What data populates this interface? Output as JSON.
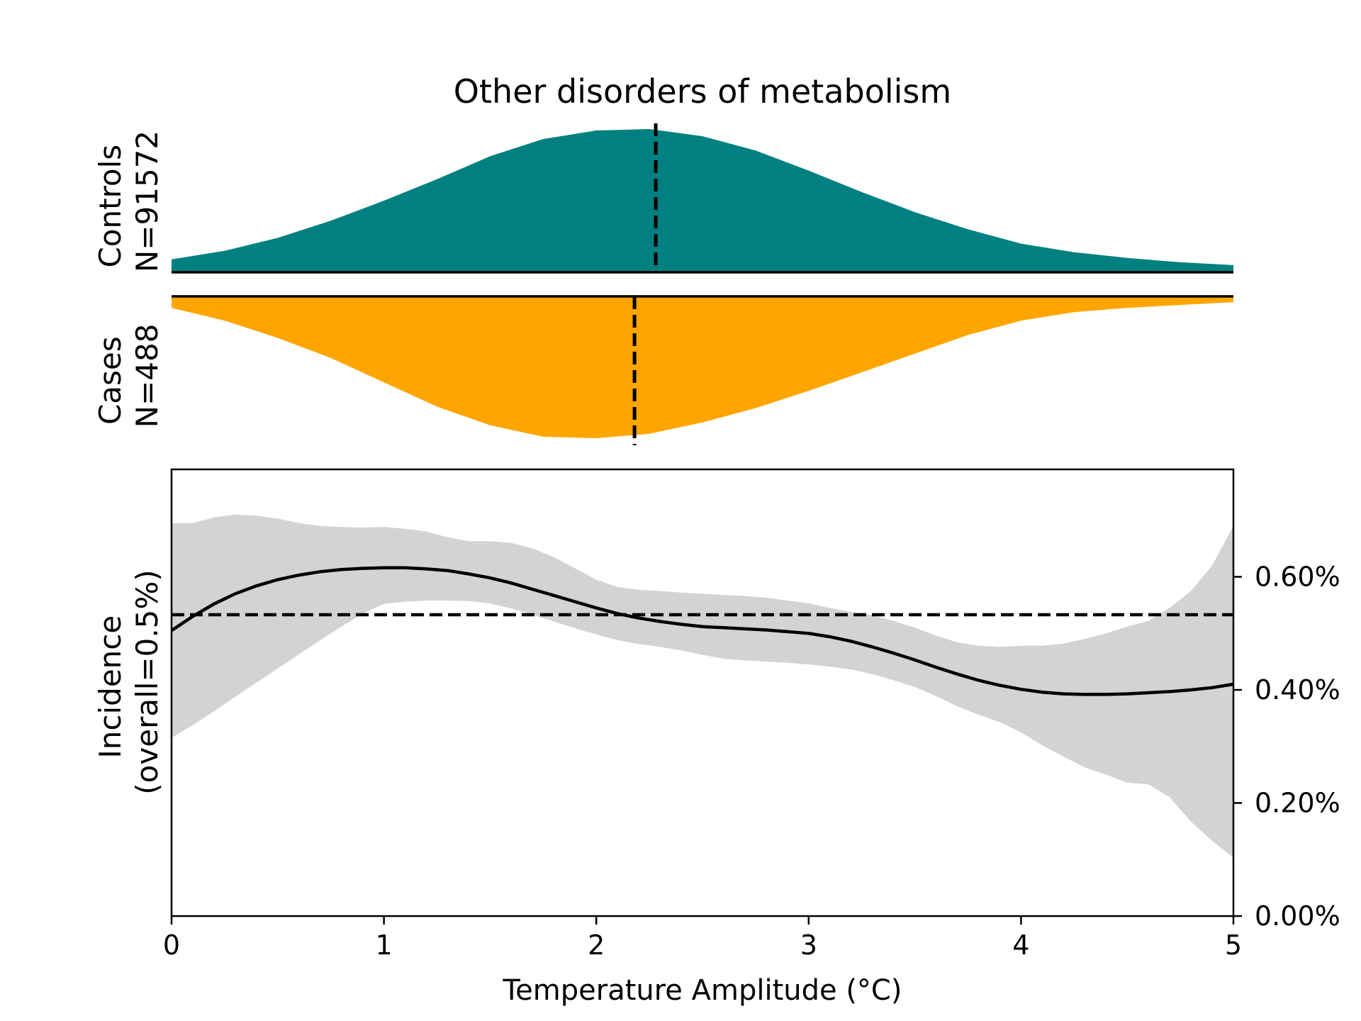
{
  "chart_data": [
    {
      "type": "area",
      "panel": "controls-density",
      "title": "Other disorders of metabolism",
      "ylabel": [
        "Controls",
        "N=91572"
      ],
      "fill": "#008080",
      "median": 2.28,
      "x": [
        0,
        0.25,
        0.5,
        0.75,
        1.0,
        1.25,
        1.5,
        1.75,
        2.0,
        2.25,
        2.5,
        2.75,
        3.0,
        3.25,
        3.5,
        3.75,
        4.0,
        4.25,
        4.5,
        4.75,
        5.0
      ],
      "values": [
        0.09,
        0.15,
        0.24,
        0.36,
        0.5,
        0.65,
        0.81,
        0.93,
        0.99,
        1.0,
        0.95,
        0.85,
        0.71,
        0.56,
        0.42,
        0.3,
        0.2,
        0.14,
        0.1,
        0.07,
        0.05
      ]
    },
    {
      "type": "area",
      "panel": "cases-density",
      "ylabel": [
        "Cases",
        "N=488"
      ],
      "fill": "#ffa500",
      "median": 2.18,
      "x": [
        0,
        0.25,
        0.5,
        0.75,
        1.0,
        1.25,
        1.5,
        1.75,
        2.0,
        2.25,
        2.5,
        2.75,
        3.0,
        3.25,
        3.5,
        3.75,
        4.0,
        4.25,
        4.5,
        4.75,
        5.0
      ],
      "values": [
        0.08,
        0.17,
        0.29,
        0.43,
        0.6,
        0.77,
        0.9,
        0.98,
        0.99,
        0.96,
        0.88,
        0.78,
        0.66,
        0.53,
        0.4,
        0.27,
        0.17,
        0.11,
        0.08,
        0.06,
        0.04
      ]
    },
    {
      "type": "line",
      "panel": "incidence",
      "xlabel": "Temperature Amplitude (°C)",
      "ylabel": [
        "Incidence",
        "(overall=0.5%)"
      ],
      "xlim": [
        0,
        5
      ],
      "ylim": [
        0,
        0.0079
      ],
      "xticks": [
        0,
        1,
        2,
        3,
        4,
        5
      ],
      "xtick_labels": [
        "0",
        "1",
        "2",
        "3",
        "4",
        "5"
      ],
      "yticks": [
        0,
        0.002,
        0.004,
        0.006
      ],
      "ytick_labels": [
        "0.00%",
        "0.20%",
        "0.40%",
        "0.60%"
      ],
      "overall": 0.00533,
      "band_color": "#d3d3d3",
      "x": [
        0,
        0.1,
        0.2,
        0.3,
        0.4,
        0.5,
        0.6,
        0.7,
        0.8,
        0.9,
        1.0,
        1.1,
        1.2,
        1.3,
        1.4,
        1.5,
        1.6,
        1.7,
        1.8,
        1.9,
        2.0,
        2.1,
        2.2,
        2.3,
        2.4,
        2.5,
        2.6,
        2.7,
        2.8,
        2.9,
        3.0,
        3.1,
        3.2,
        3.3,
        3.4,
        3.5,
        3.6,
        3.7,
        3.8,
        3.9,
        4.0,
        4.1,
        4.2,
        4.3,
        4.4,
        4.5,
        4.6,
        4.7,
        4.8,
        4.9,
        5.0
      ],
      "y": [
        0.00505,
        0.0053,
        0.00552,
        0.0057,
        0.00584,
        0.00595,
        0.00603,
        0.00609,
        0.00613,
        0.00615,
        0.00616,
        0.00616,
        0.00614,
        0.00611,
        0.00605,
        0.00598,
        0.00589,
        0.00578,
        0.00567,
        0.00556,
        0.00545,
        0.00535,
        0.00527,
        0.00521,
        0.00516,
        0.00512,
        0.0051,
        0.00508,
        0.00506,
        0.00503,
        0.005,
        0.00494,
        0.00486,
        0.00476,
        0.00465,
        0.00453,
        0.0044,
        0.00428,
        0.00417,
        0.00408,
        0.00401,
        0.00396,
        0.00393,
        0.00392,
        0.00392,
        0.00393,
        0.00395,
        0.00397,
        0.004,
        0.00404,
        0.0041
      ],
      "lower": [
        0.00315,
        0.00338,
        0.00362,
        0.00388,
        0.00413,
        0.00438,
        0.00463,
        0.00488,
        0.00512,
        0.00535,
        0.00552,
        0.00556,
        0.00558,
        0.00558,
        0.00557,
        0.00553,
        0.00544,
        0.00533,
        0.00521,
        0.00509,
        0.00498,
        0.00488,
        0.00481,
        0.00476,
        0.0047,
        0.00462,
        0.00455,
        0.00452,
        0.0045,
        0.00448,
        0.00445,
        0.00441,
        0.00436,
        0.00428,
        0.00417,
        0.00405,
        0.00389,
        0.00371,
        0.00356,
        0.00343,
        0.00325,
        0.00302,
        0.00282,
        0.00263,
        0.0025,
        0.00236,
        0.00233,
        0.0021,
        0.00167,
        0.00133,
        0.00103
      ],
      "upper": [
        0.00695,
        0.00695,
        0.00705,
        0.0071,
        0.00708,
        0.00703,
        0.00695,
        0.0069,
        0.00688,
        0.00687,
        0.00688,
        0.00685,
        0.0068,
        0.0067,
        0.00663,
        0.00663,
        0.0066,
        0.0065,
        0.00635,
        0.00615,
        0.00595,
        0.00582,
        0.00577,
        0.00575,
        0.00572,
        0.0057,
        0.00568,
        0.00566,
        0.00563,
        0.00558,
        0.00553,
        0.00545,
        0.00538,
        0.00532,
        0.00522,
        0.0051,
        0.00496,
        0.00484,
        0.00478,
        0.00476,
        0.00478,
        0.00478,
        0.00482,
        0.0049,
        0.005,
        0.00512,
        0.00522,
        0.00545,
        0.00575,
        0.0062,
        0.0069
      ]
    }
  ]
}
